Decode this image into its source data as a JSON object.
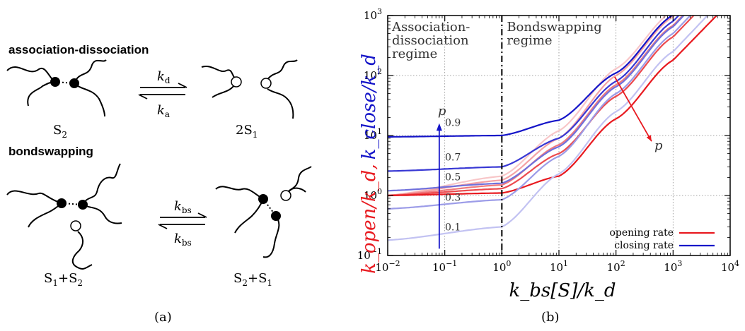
{
  "panel_a": {
    "label": "(a)",
    "section1_title": "association-dissociation",
    "section2_title": "bondswapping",
    "k_d": "k",
    "k_d_sub": "d",
    "k_a": "k",
    "k_a_sub": "a",
    "k_bs": "k",
    "k_bs_sub": "bs",
    "S2": "S",
    "S2_sub": "2",
    "twoS1": "2S",
    "twoS1_sub": "1",
    "left_bottom": [
      "S",
      "1",
      "+S",
      "2"
    ],
    "right_bottom": [
      "S",
      "2",
      "+S",
      "1"
    ]
  },
  "panel_b": {
    "label": "(b)",
    "regime_left": [
      "Association-",
      "dissociation",
      "regime"
    ],
    "regime_right": [
      "Bondswapping",
      "regime"
    ],
    "p_label": "p",
    "p_values": [
      "0.9",
      "0.7",
      "0.5",
      "0.3",
      "0.1"
    ],
    "xlabel": "k_bs[S]/k_d",
    "ylabel_red": "k_open/k_d,",
    "ylabel_blue": "k_close/k_d",
    "xticks": [
      "10",
      "10",
      "10",
      "10",
      "10",
      "10",
      "10"
    ],
    "xtick_exp": [
      "−2",
      "−1",
      "0",
      "1",
      "2",
      "3",
      "4"
    ],
    "yticks": [
      "10",
      "10",
      "10",
      "10",
      "10"
    ],
    "ytick_exp": [
      "−1",
      "0",
      "1",
      "2",
      "3"
    ]
  },
  "chart_data": {
    "type": "line",
    "xlabel": "k_bs[S]/k_d",
    "ylabel": "k_open/k_d, k_close/k_d",
    "xscale": "log",
    "yscale": "log",
    "xlim": [
      0.01,
      10000
    ],
    "ylim": [
      0.1,
      1000
    ],
    "grid": true,
    "legend_position": "bottom-right",
    "legend": [
      {
        "name": "opening rate",
        "color": "#e8191f"
      },
      {
        "name": "closing rate",
        "color": "#1414c8"
      }
    ],
    "vertical_line_x": 1,
    "series": [
      {
        "name": "closing rate",
        "p": "0.9",
        "color": "#1414c8",
        "x": [
          0.01,
          1,
          10,
          100,
          1000
        ],
        "y": [
          9.5,
          10,
          18,
          110,
          1020
        ]
      },
      {
        "name": "closing rate",
        "p": "0.7",
        "color": "#3838d4",
        "x": [
          0.01,
          1,
          10,
          100,
          1000
        ],
        "y": [
          2.55,
          3,
          9,
          80,
          800
        ]
      },
      {
        "name": "closing rate",
        "p": "0.5",
        "color": "#7070dc",
        "x": [
          0.01,
          1,
          10,
          100,
          1000
        ],
        "y": [
          1.2,
          1.6,
          6.5,
          65,
          650
        ]
      },
      {
        "name": "closing rate",
        "p": "0.3",
        "color": "#9c9ce8",
        "x": [
          0.01,
          1,
          10,
          100,
          1000
        ],
        "y": [
          0.6,
          0.85,
          4.5,
          50,
          500
        ]
      },
      {
        "name": "closing rate",
        "p": "0.1",
        "color": "#c2c2f2",
        "x": [
          0.01,
          1,
          10,
          100,
          1000
        ],
        "y": [
          0.18,
          0.3,
          2.3,
          25,
          250
        ]
      },
      {
        "name": "opening rate",
        "p": "0.9",
        "color": "#e8191f",
        "x": [
          0.01,
          1,
          10,
          100,
          1000
        ],
        "y": [
          1.0,
          1.1,
          2.1,
          19,
          180
        ]
      },
      {
        "name": "opening rate",
        "p": "0.7",
        "color": "#ec4a4e",
        "x": [
          0.01,
          1,
          10,
          100,
          1000
        ],
        "y": [
          1.0,
          1.3,
          5,
          45,
          440
        ]
      },
      {
        "name": "opening rate",
        "p": "0.5",
        "color": "#f07a7e",
        "x": [
          0.01,
          1,
          10,
          100,
          1000
        ],
        "y": [
          1.0,
          1.5,
          7,
          70,
          680
        ]
      },
      {
        "name": "opening rate",
        "p": "0.3",
        "color": "#f4a2a5",
        "x": [
          0.01,
          1,
          10,
          100,
          1000
        ],
        "y": [
          1.0,
          1.8,
          9,
          100,
          950
        ]
      },
      {
        "name": "opening rate",
        "p": "0.1",
        "color": "#f8c6c8",
        "x": [
          0.01,
          1,
          10,
          100,
          1000
        ],
        "y": [
          1.0,
          2.1,
          12,
          130,
          1200
        ]
      }
    ]
  }
}
